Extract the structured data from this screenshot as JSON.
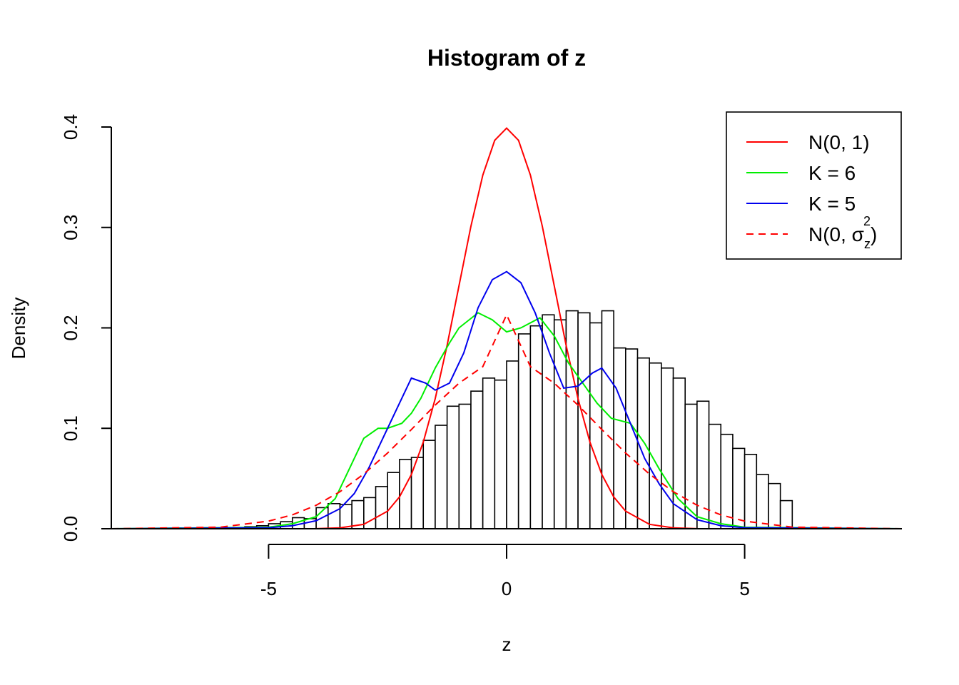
{
  "chart_data": {
    "type": "histogram",
    "title": "Histogram of z",
    "xlabel": "z",
    "ylabel": "Density",
    "xlim": [
      -8.3,
      8.3
    ],
    "ylim": [
      0,
      0.4
    ],
    "x_ticks": [
      -5,
      0,
      5
    ],
    "x_tick_labels": [
      "-5",
      "0",
      "5"
    ],
    "y_ticks": [
      0.0,
      0.1,
      0.2,
      0.3,
      0.4
    ],
    "y_tick_labels": [
      "0.0",
      "0.1",
      "0.2",
      "0.3",
      "0.4"
    ],
    "grid": false,
    "legend_position": "top-right",
    "histogram": {
      "bins": [
        {
          "x0": -6.5,
          "x1": -6.25,
          "density": 0.001
        },
        {
          "x0": -6.25,
          "x1": -6.0,
          "density": 0.0
        },
        {
          "x0": -6.0,
          "x1": -5.75,
          "density": 0.0
        },
        {
          "x0": -5.75,
          "x1": -5.5,
          "density": 0.001
        },
        {
          "x0": -5.5,
          "x1": -5.25,
          "density": 0.002
        },
        {
          "x0": -5.25,
          "x1": -5.0,
          "density": 0.003
        },
        {
          "x0": -5.0,
          "x1": -4.75,
          "density": 0.005
        },
        {
          "x0": -4.75,
          "x1": -4.5,
          "density": 0.007
        },
        {
          "x0": -4.5,
          "x1": -4.25,
          "density": 0.011
        },
        {
          "x0": -4.25,
          "x1": -4.0,
          "density": 0.01
        },
        {
          "x0": -4.0,
          "x1": -3.75,
          "density": 0.021
        },
        {
          "x0": -3.75,
          "x1": -3.5,
          "density": 0.025
        },
        {
          "x0": -3.5,
          "x1": -3.25,
          "density": 0.024
        },
        {
          "x0": -3.25,
          "x1": -3.0,
          "density": 0.028
        },
        {
          "x0": -3.0,
          "x1": -2.75,
          "density": 0.031
        },
        {
          "x0": -2.75,
          "x1": -2.5,
          "density": 0.042
        },
        {
          "x0": -2.5,
          "x1": -2.25,
          "density": 0.056
        },
        {
          "x0": -2.25,
          "x1": -2.0,
          "density": 0.069
        },
        {
          "x0": -2.0,
          "x1": -1.75,
          "density": 0.071
        },
        {
          "x0": -1.75,
          "x1": -1.5,
          "density": 0.088
        },
        {
          "x0": -1.5,
          "x1": -1.25,
          "density": 0.103
        },
        {
          "x0": -1.25,
          "x1": -1.0,
          "density": 0.122
        },
        {
          "x0": -1.0,
          "x1": -0.75,
          "density": 0.124
        },
        {
          "x0": -0.75,
          "x1": -0.5,
          "density": 0.137
        },
        {
          "x0": -0.5,
          "x1": -0.25,
          "density": 0.15
        },
        {
          "x0": -0.25,
          "x1": 0.0,
          "density": 0.148
        },
        {
          "x0": 0.0,
          "x1": 0.25,
          "density": 0.167
        },
        {
          "x0": 0.25,
          "x1": 0.5,
          "density": 0.194
        },
        {
          "x0": 0.5,
          "x1": 0.75,
          "density": 0.202
        },
        {
          "x0": 0.75,
          "x1": 1.0,
          "density": 0.213
        },
        {
          "x0": 1.0,
          "x1": 1.25,
          "density": 0.208
        },
        {
          "x0": 1.25,
          "x1": 1.5,
          "density": 0.217
        },
        {
          "x0": 1.5,
          "x1": 1.75,
          "density": 0.215
        },
        {
          "x0": 1.75,
          "x1": 2.0,
          "density": 0.205
        },
        {
          "x0": 2.0,
          "x1": 2.25,
          "density": 0.217
        },
        {
          "x0": 2.25,
          "x1": 2.5,
          "density": 0.18
        },
        {
          "x0": 2.5,
          "x1": 2.75,
          "density": 0.179
        },
        {
          "x0": 2.75,
          "x1": 3.0,
          "density": 0.17
        },
        {
          "x0": 3.0,
          "x1": 3.25,
          "density": 0.165
        },
        {
          "x0": 3.25,
          "x1": 3.5,
          "density": 0.16
        },
        {
          "x0": 3.5,
          "x1": 3.75,
          "density": 0.15
        },
        {
          "x0": 3.75,
          "x1": 4.0,
          "density": 0.124
        },
        {
          "x0": 4.0,
          "x1": 4.25,
          "density": 0.127
        },
        {
          "x0": 4.25,
          "x1": 4.5,
          "density": 0.104
        },
        {
          "x0": 4.5,
          "x1": 4.75,
          "density": 0.094
        },
        {
          "x0": 4.75,
          "x1": 5.0,
          "density": 0.08
        },
        {
          "x0": 5.0,
          "x1": 5.25,
          "density": 0.074
        },
        {
          "x0": 5.25,
          "x1": 5.5,
          "density": 0.054
        },
        {
          "x0": 5.5,
          "x1": 5.75,
          "density": 0.045
        },
        {
          "x0": 5.75,
          "x1": 6.0,
          "density": 0.028
        }
      ]
    },
    "series": [
      {
        "name": "N(0, 1)",
        "kind": "curve",
        "color": "#FF0000",
        "dash": "solid",
        "x": [
          -8.3,
          -5.0,
          -4.0,
          -3.5,
          -3.0,
          -2.5,
          -2.25,
          -2.0,
          -1.75,
          -1.5,
          -1.25,
          -1.0,
          -0.75,
          -0.5,
          -0.25,
          0.0,
          0.25,
          0.5,
          0.75,
          1.0,
          1.25,
          1.5,
          1.75,
          2.0,
          2.25,
          2.5,
          3.0,
          3.5,
          4.0,
          5.0,
          8.3
        ],
        "y": [
          0.0,
          0.0,
          0.0001,
          0.0009,
          0.0044,
          0.0175,
          0.0317,
          0.054,
          0.0863,
          0.1295,
          0.1826,
          0.242,
          0.3011,
          0.3521,
          0.3867,
          0.3989,
          0.3867,
          0.3521,
          0.3011,
          0.242,
          0.1826,
          0.1295,
          0.0863,
          0.054,
          0.0317,
          0.0175,
          0.0044,
          0.0009,
          0.0001,
          0.0,
          0.0
        ]
      },
      {
        "name": "K = 6",
        "kind": "curve",
        "color": "#00EE00",
        "dash": "solid",
        "x": [
          -8.3,
          -5.0,
          -4.5,
          -4.0,
          -3.6,
          -3.3,
          -3.0,
          -2.7,
          -2.5,
          -2.2,
          -2.0,
          -1.8,
          -1.5,
          -1.2,
          -1.0,
          -0.6,
          -0.3,
          0.0,
          0.3,
          0.7,
          1.0,
          1.3,
          1.6,
          1.9,
          2.2,
          2.6,
          2.9,
          3.2,
          3.6,
          4.0,
          4.5,
          5.0,
          8.3
        ],
        "y": [
          0.0,
          0.0015,
          0.005,
          0.012,
          0.03,
          0.06,
          0.09,
          0.1,
          0.1,
          0.105,
          0.115,
          0.13,
          0.16,
          0.185,
          0.2,
          0.215,
          0.208,
          0.196,
          0.2,
          0.21,
          0.192,
          0.165,
          0.145,
          0.125,
          0.11,
          0.105,
          0.085,
          0.06,
          0.03,
          0.012,
          0.005,
          0.0015,
          0.0
        ]
      },
      {
        "name": "K = 5",
        "kind": "curve",
        "color": "#0000EE",
        "dash": "solid",
        "x": [
          -8.3,
          -5.0,
          -4.5,
          -4.0,
          -3.5,
          -3.2,
          -2.9,
          -2.6,
          -2.3,
          -2.0,
          -1.7,
          -1.5,
          -1.2,
          -0.9,
          -0.6,
          -0.3,
          0.0,
          0.3,
          0.6,
          0.9,
          1.2,
          1.5,
          1.8,
          2.0,
          2.3,
          2.6,
          2.9,
          3.2,
          3.5,
          4.0,
          4.5,
          5.0,
          8.3
        ],
        "y": [
          0.0,
          0.001,
          0.003,
          0.008,
          0.02,
          0.035,
          0.06,
          0.09,
          0.12,
          0.15,
          0.145,
          0.138,
          0.145,
          0.175,
          0.22,
          0.248,
          0.256,
          0.245,
          0.215,
          0.175,
          0.14,
          0.142,
          0.155,
          0.16,
          0.14,
          0.105,
          0.07,
          0.045,
          0.025,
          0.009,
          0.003,
          0.001,
          0.0
        ]
      },
      {
        "name": "N(0, σ_z^2)",
        "kind": "curve",
        "color": "#FF0000",
        "dash": "dashed",
        "x": [
          -8.3,
          -6.0,
          -5.0,
          -4.5,
          -4.0,
          -3.5,
          -3.0,
          -2.5,
          -2.0,
          -1.5,
          -1.0,
          -0.5,
          0.0,
          0.5,
          1.0,
          1.5,
          2.0,
          2.5,
          3.0,
          3.5,
          4.0,
          4.5,
          5.0,
          6.0,
          8.3
        ],
        "y": [
          0.0,
          0.0016,
          0.0076,
          0.0138,
          0.0234,
          0.0369,
          0.0545,
          0.0754,
          0.0988,
          0.1231,
          0.1449,
          0.1614,
          0.213,
          0.1614,
          0.1449,
          0.1231,
          0.0988,
          0.0754,
          0.0545,
          0.0369,
          0.0234,
          0.0138,
          0.0076,
          0.0016,
          0.0
        ]
      }
    ],
    "legend": {
      "entries": [
        {
          "label": "N(0, 1)",
          "color": "#FF0000",
          "dash": "solid"
        },
        {
          "label": "K = 6",
          "color": "#00EE00",
          "dash": "solid"
        },
        {
          "label": "K = 5",
          "color": "#0000EE",
          "dash": "solid"
        },
        {
          "label": "N(0, σ_z^2)",
          "color": "#FF0000",
          "dash": "dashed"
        }
      ]
    }
  }
}
